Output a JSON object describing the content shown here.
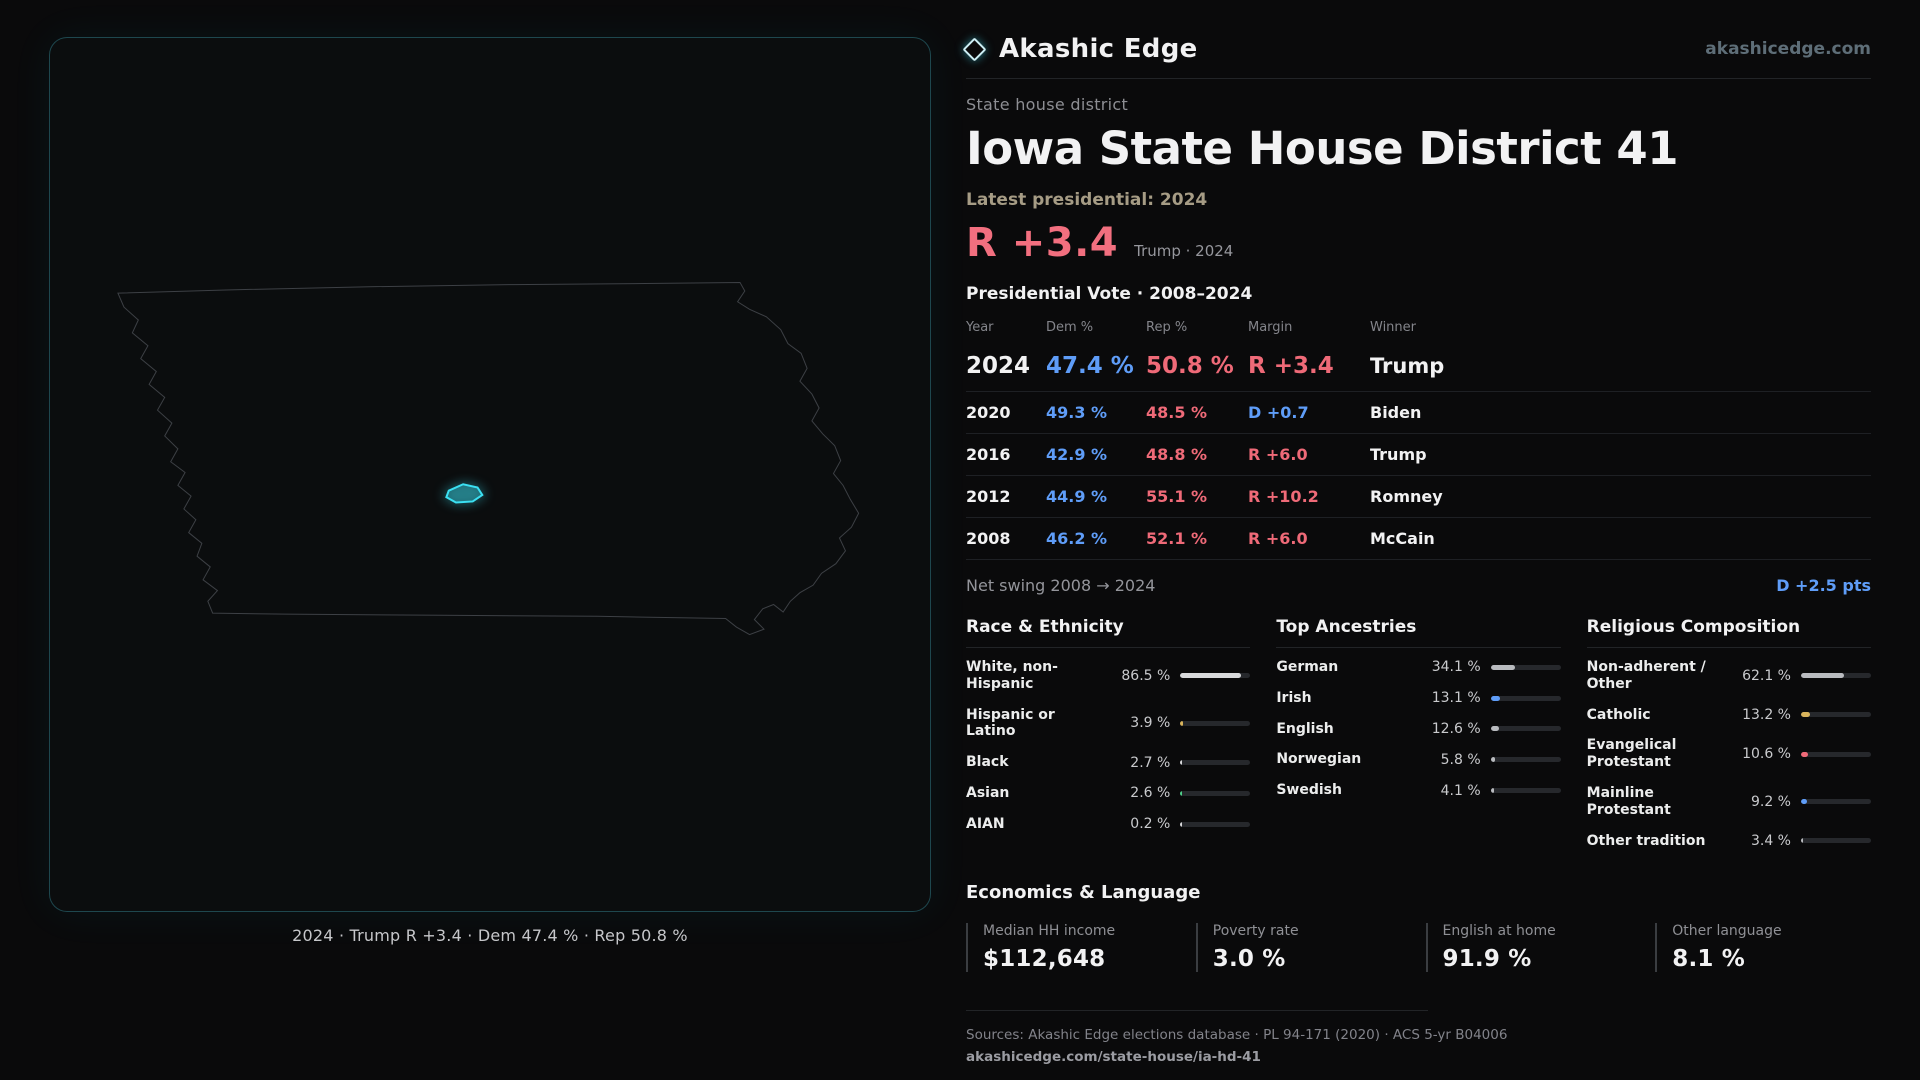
{
  "colors": {
    "accent_cyan": "#3be0f2",
    "dem_blue": "#5f9df8",
    "rep_red": "#ef6a78",
    "gold": "#d9b45c",
    "green": "#4fd08a"
  },
  "brand": {
    "name": "Akashic Edge",
    "site_label": "akashicedge.com"
  },
  "page": {
    "kicker": "State house district",
    "title": "Iowa State House District 41",
    "latest_label": "Latest presidential: 2024",
    "headline_margin": "R +3.4",
    "headline_context": "Trump · 2024"
  },
  "map_panel": {
    "caption": "2024 · Trump R +3.4 · Dem 47.4 % · Rep 50.8 %"
  },
  "vote_table": {
    "title": "Presidential Vote · 2008–2024",
    "columns": [
      "Year",
      "Dem %",
      "Rep %",
      "Margin",
      "Winner"
    ],
    "rows": [
      {
        "year": "2024",
        "dem": "47.4 %",
        "rep": "50.8 %",
        "margin": "R +3.4",
        "winner": "Trump",
        "margin_color": "#ef6a78"
      },
      {
        "year": "2020",
        "dem": "49.3 %",
        "rep": "48.5 %",
        "margin": "D +0.7",
        "winner": "Biden",
        "margin_color": "#5f9df8"
      },
      {
        "year": "2016",
        "dem": "42.9 %",
        "rep": "48.8 %",
        "margin": "R +6.0",
        "winner": "Trump",
        "margin_color": "#ef6a78"
      },
      {
        "year": "2012",
        "dem": "44.9 %",
        "rep": "55.1 %",
        "margin": "R +10.2",
        "winner": "Romney",
        "margin_color": "#ef6a78"
      },
      {
        "year": "2008",
        "dem": "46.2 %",
        "rep": "52.1 %",
        "margin": "R +6.0",
        "winner": "McCain",
        "margin_color": "#ef6a78"
      }
    ]
  },
  "swing": {
    "label": "Net swing 2008 → 2024",
    "value": "D +2.5 pts"
  },
  "demographics": {
    "race": {
      "heading": "Race & Ethnicity",
      "rows": [
        {
          "label": "White, non-Hispanic",
          "value": "86.5 %",
          "pct": 86.5,
          "color": "#d8d9db"
        },
        {
          "label": "Hispanic or Latino",
          "value": "3.9 %",
          "pct": 3.9,
          "color": "#d9b45c"
        },
        {
          "label": "Black",
          "value": "2.7 %",
          "pct": 2.7,
          "color": "#d8d9db"
        },
        {
          "label": "Asian",
          "value": "2.6 %",
          "pct": 2.6,
          "color": "#4fd08a"
        },
        {
          "label": "AIAN",
          "value": "0.2 %",
          "pct": 0.2,
          "color": "#d8d9db"
        }
      ]
    },
    "ancestries": {
      "heading": "Top Ancestries",
      "rows": [
        {
          "label": "German",
          "value": "34.1 %",
          "pct": 34.1,
          "color": "#b9bbbf"
        },
        {
          "label": "Irish",
          "value": "13.1 %",
          "pct": 13.1,
          "color": "#5f9df8"
        },
        {
          "label": "English",
          "value": "12.6 %",
          "pct": 12.6,
          "color": "#b9bbbf"
        },
        {
          "label": "Norwegian",
          "value": "5.8 %",
          "pct": 5.8,
          "color": "#b9bbbf"
        },
        {
          "label": "Swedish",
          "value": "4.1 %",
          "pct": 4.1,
          "color": "#b9bbbf"
        }
      ]
    },
    "religion": {
      "heading": "Religious Composition",
      "rows": [
        {
          "label": "Non-adherent / Other",
          "value": "62.1 %",
          "pct": 62.1,
          "color": "#b9bbbf"
        },
        {
          "label": "Catholic",
          "value": "13.2 %",
          "pct": 13.2,
          "color": "#d9b45c"
        },
        {
          "label": "Evangelical Protestant",
          "value": "10.6 %",
          "pct": 10.6,
          "color": "#ef6a78"
        },
        {
          "label": "Mainline Protestant",
          "value": "9.2 %",
          "pct": 9.2,
          "color": "#5f9df8"
        },
        {
          "label": "Other tradition",
          "value": "3.4 %",
          "pct": 3.4,
          "color": "#b9bbbf"
        }
      ]
    }
  },
  "economics": {
    "heading": "Economics & Language",
    "stats": [
      {
        "label": "Median HH income",
        "value": "$112,648"
      },
      {
        "label": "Poverty rate",
        "value": "3.0 %"
      },
      {
        "label": "English at home",
        "value": "91.9 %"
      },
      {
        "label": "Other language",
        "value": "8.1 %"
      }
    ]
  },
  "footer": {
    "sources": "Sources: Akashic Edge elections database · PL 94-171 (2020) · ACS 5-yr B04006",
    "permalink": "akashicedge.com/state-house/ia-hd-41"
  }
}
